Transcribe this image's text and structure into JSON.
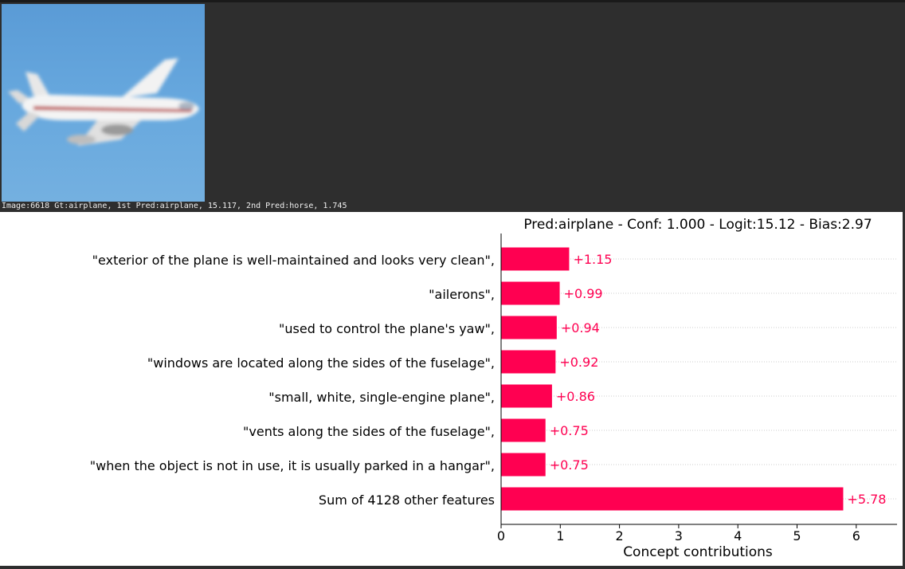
{
  "image_caption": "Image:6618 Gt:airplane, 1st Pred:airplane, 15.117, 2nd Pred:horse, 1.745",
  "thumbnail": {
    "subject": "airplane",
    "sky_color": "#67a8de"
  },
  "chart_data": {
    "type": "bar",
    "orientation": "horizontal",
    "title": "Pred:airplane - Conf: 1.000 - Logit:15.12 - Bias:2.97",
    "xlabel": "Concept contributions",
    "ylabel": "",
    "xlim": [
      0,
      6.7
    ],
    "xticks": [
      0,
      1,
      2,
      3,
      4,
      5,
      6
    ],
    "grid": "dotted horizontal per row",
    "bar_color": "#ff0051",
    "categories": [
      "\"exterior of the plane is well-maintained and looks very clean\",",
      "\"ailerons\",",
      "\"used to control the plane's yaw\",",
      "\"windows are located along the sides of the fuselage\",",
      "\"small, white, single-engine plane\",",
      "\"vents along the sides of the fuselage\",",
      "\"when the object is not in use, it is usually parked in a hangar\",",
      "Sum of 4128 other features"
    ],
    "values": [
      1.15,
      0.99,
      0.94,
      0.92,
      0.86,
      0.75,
      0.75,
      5.78
    ],
    "value_labels": [
      "+1.15",
      "+0.99",
      "+0.94",
      "+0.92",
      "+0.86",
      "+0.75",
      "+0.75",
      "+5.78"
    ]
  }
}
